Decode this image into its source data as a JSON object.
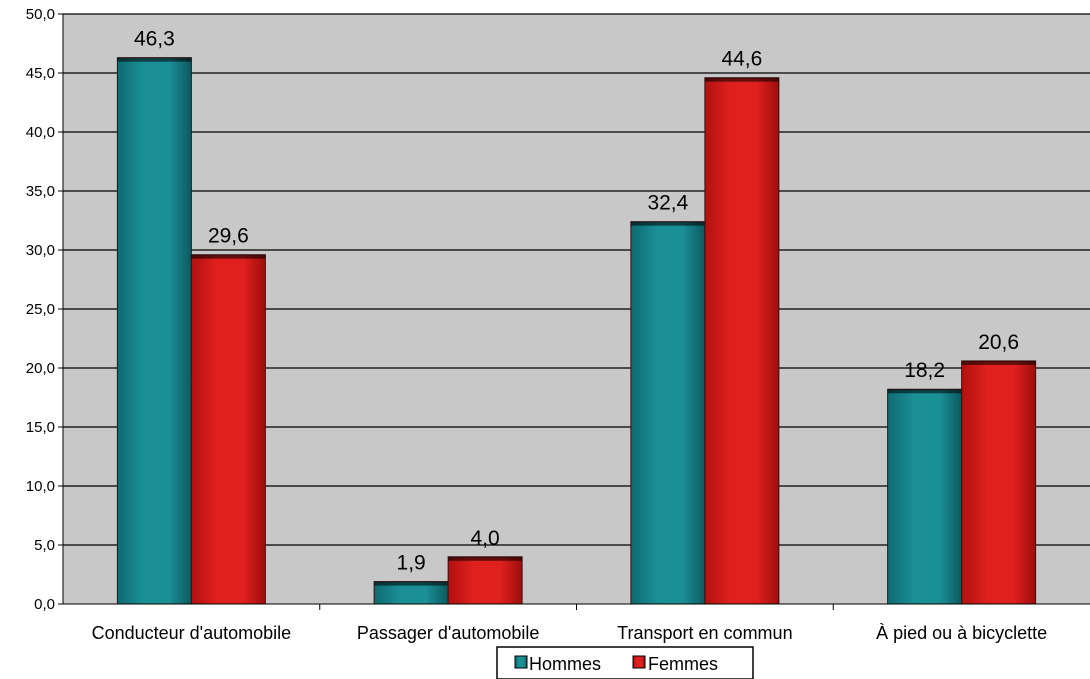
{
  "chart_data": {
    "type": "bar",
    "categories": [
      "Conducteur d'automobile",
      "Passager d'automobile",
      "Transport en commun",
      "À pied ou à bicyclette"
    ],
    "series": [
      {
        "name": "Hommes",
        "values": [
          46.3,
          1.9,
          32.4,
          18.2
        ],
        "color": "#1a8f96"
      },
      {
        "name": "Femmes",
        "values": [
          29.6,
          4.0,
          44.6,
          20.6
        ],
        "color": "#e0201e"
      }
    ],
    "data_labels": [
      [
        "46,3",
        "1,9",
        "32,4",
        "18,2"
      ],
      [
        "29,6",
        "4,0",
        "44,6",
        "20,6"
      ]
    ],
    "ylim": [
      0,
      50
    ],
    "y_ticks": [
      "0,0",
      "5,0",
      "10,0",
      "15,0",
      "20,0",
      "25,0",
      "30,0",
      "35,0",
      "40,0",
      "45,0",
      "50,0"
    ],
    "grid": true,
    "legend_position": "bottom",
    "plot_background": "#c8c8c8"
  }
}
